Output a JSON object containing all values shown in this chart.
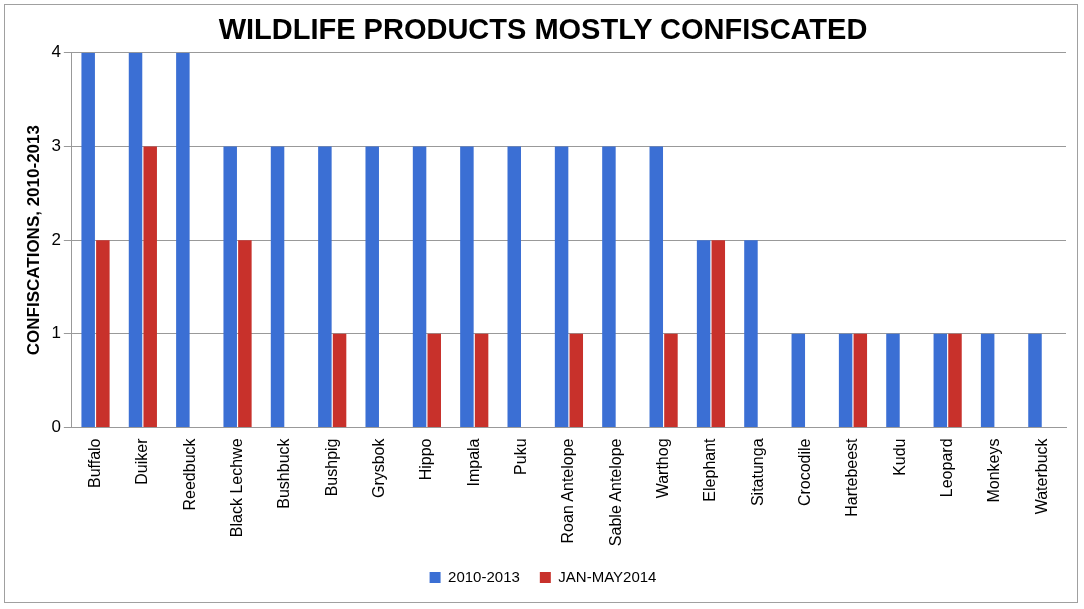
{
  "chart_data": {
    "type": "bar",
    "title": "WILDLIFE PRODUCTS MOSTLY CONFISCATED",
    "ylabel": "CONFISCATIONS, 2010-2013",
    "categories": [
      "Buffalo",
      "Duiker",
      "Reedbuck",
      "Black Lechwe",
      "Bushbuck",
      "Bushpig",
      "Grysbok",
      "Hippo",
      "Impala",
      "Puku",
      "Roan Antelope",
      "Sable Antelope",
      "Warthog",
      "Elephant",
      "Sitatunga",
      "Crocodile",
      "Hartebeest",
      "Kudu",
      "Leopard",
      "Monkeys",
      "Waterbuck"
    ],
    "series": [
      {
        "name": "2010-2013",
        "color": "#3b6fd4",
        "values": [
          4,
          4,
          4,
          3,
          3,
          3,
          3,
          3,
          3,
          3,
          3,
          3,
          3,
          2,
          2,
          1,
          1,
          1,
          1,
          1,
          1
        ]
      },
      {
        "name": "JAN-MAY2014",
        "color": "#c8312b",
        "values": [
          2,
          3,
          0,
          2,
          0,
          1,
          0,
          1,
          1,
          0,
          1,
          0,
          1,
          2,
          0,
          0,
          1,
          0,
          1,
          0,
          0
        ]
      }
    ],
    "ylim": [
      0,
      4
    ],
    "yticks": [
      0,
      1,
      2,
      3,
      4
    ],
    "grid": "y",
    "legend": "bottom"
  }
}
